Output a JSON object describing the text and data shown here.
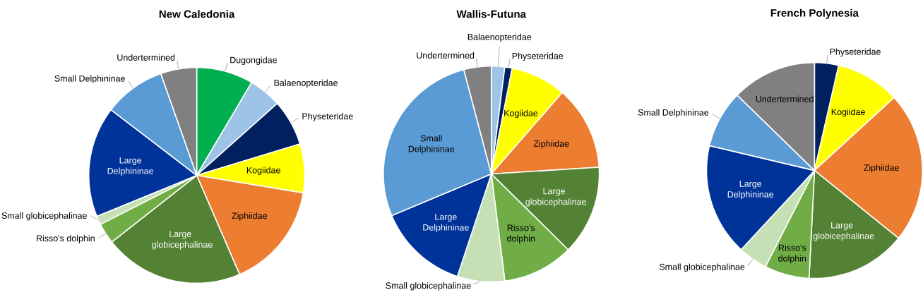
{
  "chart_data": [
    {
      "type": "pie",
      "title": "New Caledonia",
      "categories": [
        "Dugongidae",
        "Balaenopteridae",
        "Physeteridae",
        "Kogiidae",
        "Ziphiidae",
        "Large globicephalinae",
        "Risso's dolphin",
        "Small globicephalinae",
        "Large Delphininae",
        "Small Delphininae",
        "Undertermined"
      ],
      "values": [
        8.5,
        4.9,
        6.9,
        7.3,
        15.9,
        20.9,
        3.1,
        1.3,
        16.6,
        9.2,
        5.4
      ],
      "colors": [
        "#00b050",
        "#9dc3e6",
        "#002060",
        "#ffff00",
        "#ed7d31",
        "#548235",
        "#70ad47",
        "#c5e0b4",
        "#003399",
        "#5b9bd5",
        "#808080"
      ]
    },
    {
      "type": "pie",
      "title": "Wallis-Futuna",
      "categories": [
        "Balaenopteridae",
        "Physeteridae",
        "Kogiidae",
        "Ziphiidae",
        "Large globicephalinae",
        "Risso's dolphin",
        "Small globicephalinae",
        "Large Delphininae",
        "Small Delphininae",
        "Undertermined"
      ],
      "values": [
        2.0,
        1.1,
        8.3,
        12.6,
        13.4,
        10.6,
        7.1,
        13.6,
        27.2,
        4.1
      ],
      "colors": [
        "#9dc3e6",
        "#002060",
        "#ffff00",
        "#ed7d31",
        "#548235",
        "#70ad47",
        "#c5e0b4",
        "#003399",
        "#5b9bd5",
        "#808080"
      ]
    },
    {
      "type": "pie",
      "title": "French Polynesia",
      "categories": [
        "Physeteridae",
        "Kogiidae",
        "Ziphiidae",
        "Large globicephalinae",
        "Risso's dolphin",
        "Small globicephalinae",
        "Large Delphininae",
        "Small Delphininae",
        "Undertermined"
      ],
      "values": [
        3.6,
        9.6,
        22.6,
        15.0,
        6.7,
        4.4,
        16.8,
        8.6,
        12.7
      ],
      "colors": [
        "#002060",
        "#ffff00",
        "#ed7d31",
        "#548235",
        "#70ad47",
        "#c5e0b4",
        "#003399",
        "#5b9bd5",
        "#808080"
      ]
    }
  ]
}
